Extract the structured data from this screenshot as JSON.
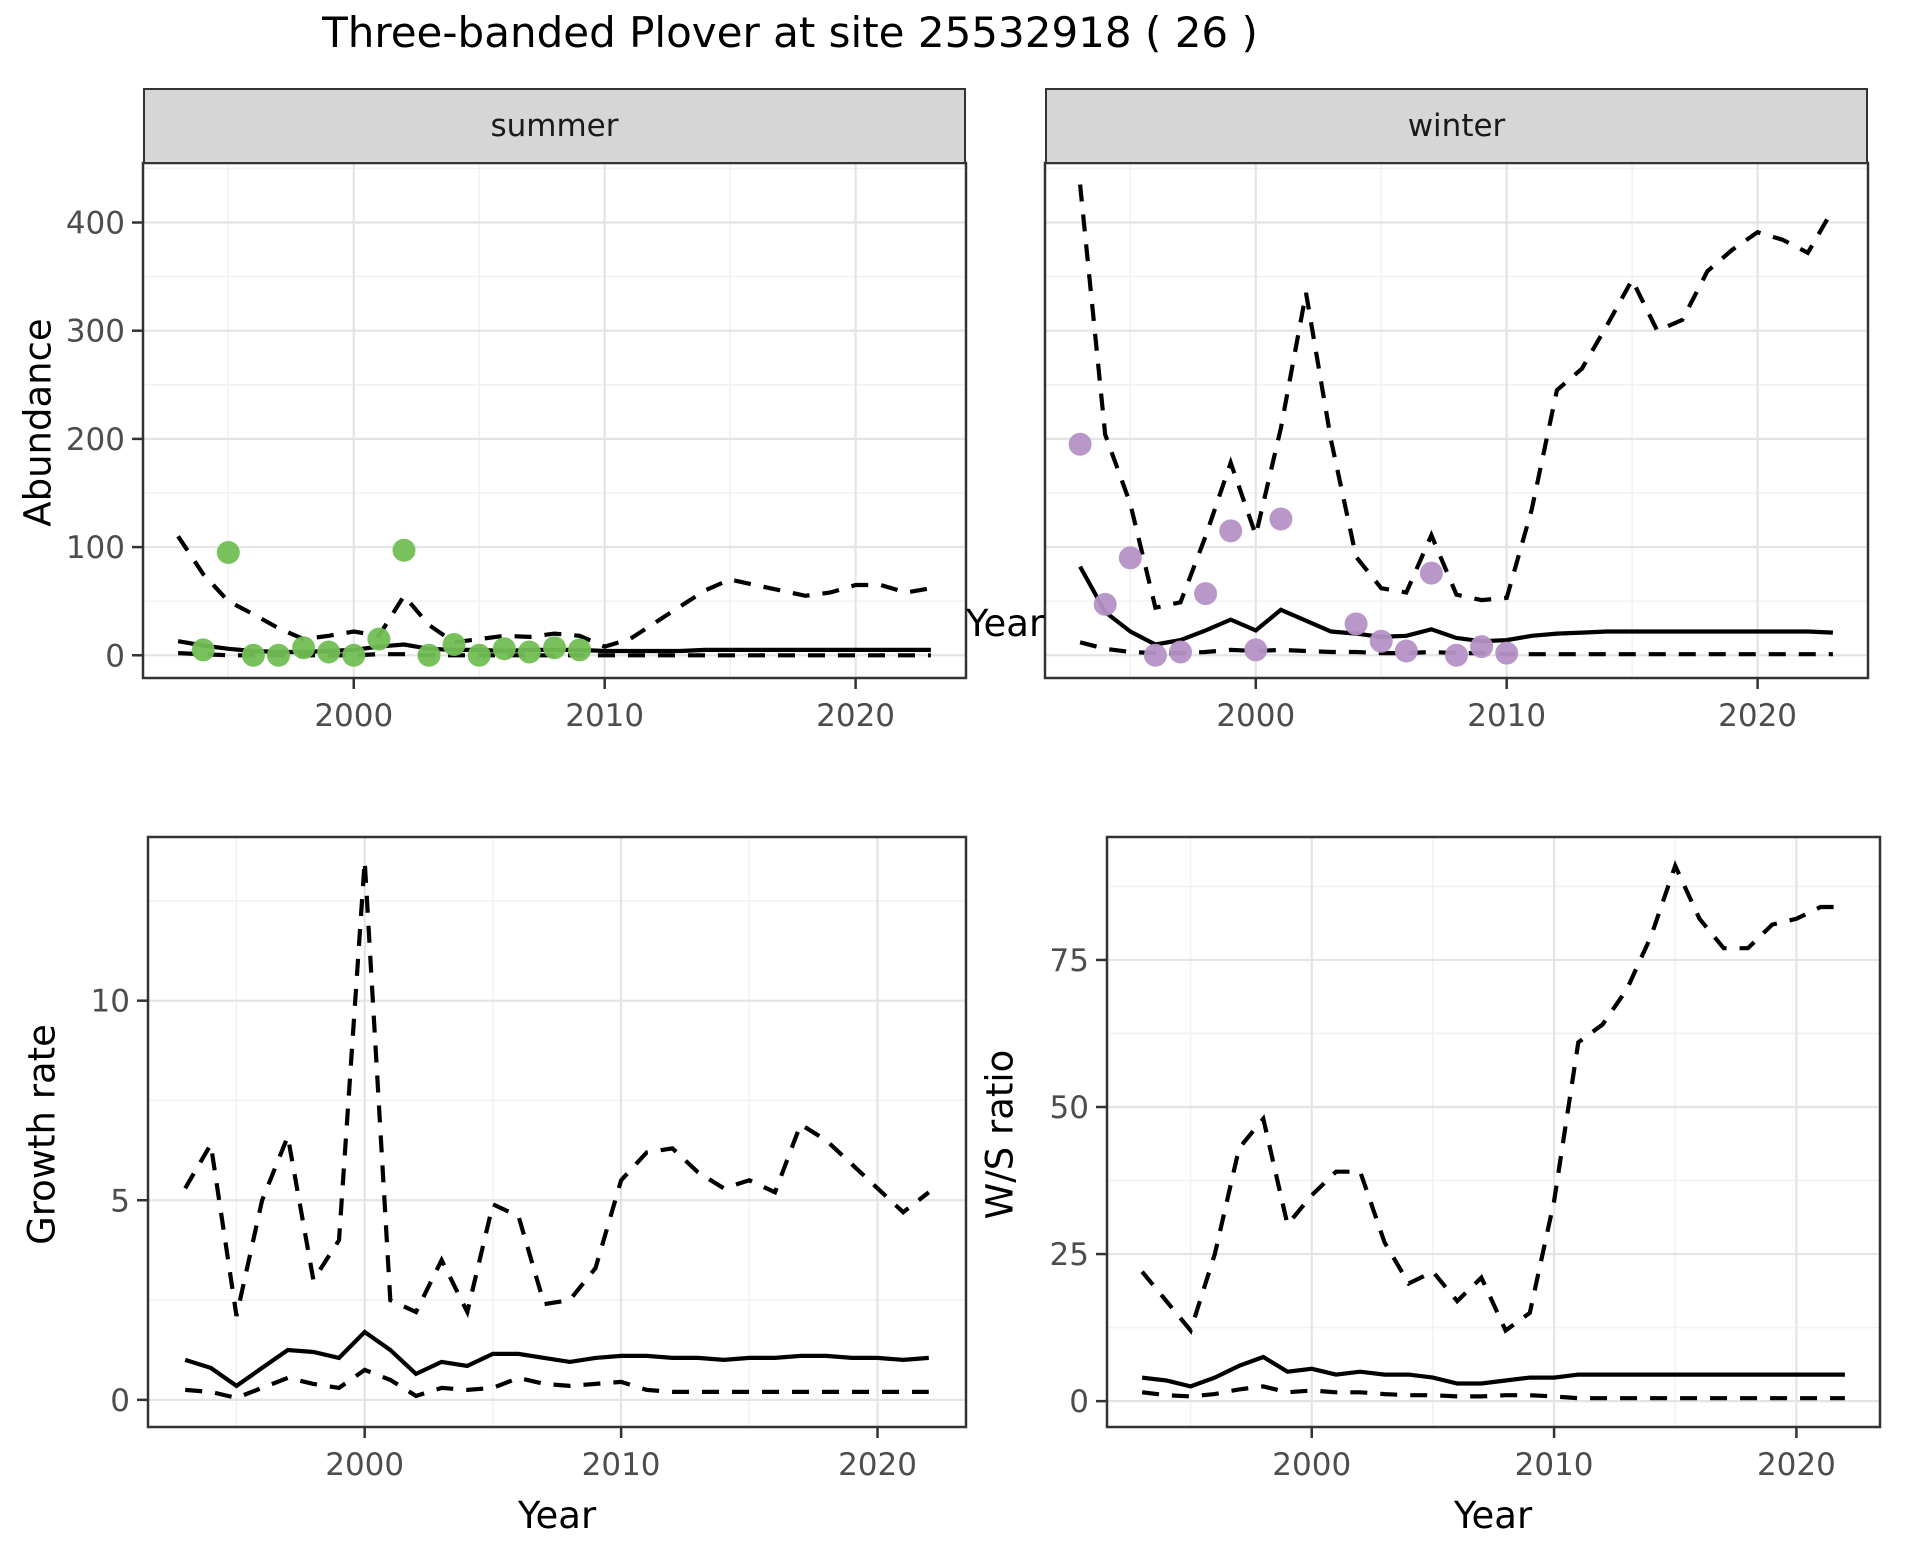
{
  "title": "Three-banded Plover at site 25532918 ( 26 )",
  "colors": {
    "summer_points": "#72BE54",
    "winter_points": "#B592C6",
    "line": "#000000",
    "strip_bg": "#d6d6d6",
    "grid_major": "#e4e4e4",
    "grid_minor": "#f2f2f2",
    "tick_label": "#4d4d4d",
    "panel_border": "#333333"
  },
  "chart_data": [
    {
      "type": "line",
      "facet": "summer",
      "xlabel": "Year",
      "ylabel": "Abundance",
      "xlim": [
        1991.6,
        2024.4
      ],
      "ylim": [
        -21,
        455
      ],
      "xticks": [
        2000,
        2010,
        2020
      ],
      "xtick_labels": [
        "2000",
        "2010",
        "2020"
      ],
      "xticks_minor": [
        1995,
        2005,
        2015
      ],
      "yticks": [
        0,
        100,
        200,
        300,
        400
      ],
      "ytick_labels": [
        "0",
        "100",
        "200",
        "300",
        "400"
      ],
      "yticks_minor": [
        50,
        150,
        250,
        350,
        450
      ],
      "grid": true,
      "legend": "none",
      "x": [
        1993,
        1994,
        1995,
        1996,
        1997,
        1998,
        1999,
        2000,
        2001,
        2002,
        2003,
        2004,
        2005,
        2006,
        2007,
        2008,
        2009,
        2010,
        2011,
        2012,
        2013,
        2014,
        2015,
        2016,
        2017,
        2018,
        2019,
        2020,
        2021,
        2022,
        2023
      ],
      "series": [
        {
          "name": "upper_credible_interval",
          "style": "dashed",
          "values": [
            110,
            75,
            50,
            38,
            25,
            15,
            18,
            22,
            18,
            55,
            28,
            12,
            15,
            18,
            17,
            20,
            18,
            8,
            15,
            30,
            45,
            60,
            70,
            65,
            60,
            55,
            58,
            65,
            65,
            58,
            62
          ]
        },
        {
          "name": "median",
          "style": "solid",
          "values": [
            13,
            9,
            6,
            4,
            3,
            3,
            4,
            5,
            8,
            10,
            6,
            5,
            5,
            4,
            5,
            5,
            5,
            4,
            4,
            4,
            4,
            5,
            5,
            5,
            5,
            5,
            5,
            5,
            5,
            5,
            5
          ]
        },
        {
          "name": "lower_credible_interval",
          "style": "dashed",
          "values": [
            2,
            1,
            0,
            0,
            0,
            0,
            0,
            0,
            1,
            1,
            0,
            0,
            0,
            0,
            0,
            0,
            0,
            0,
            0,
            0,
            0,
            0,
            0,
            0,
            0,
            0,
            0,
            0,
            0,
            0,
            0
          ]
        }
      ],
      "points": {
        "name": "observed_counts",
        "color": "#72BE54",
        "x": [
          1994,
          1995,
          1996,
          1997,
          1998,
          1999,
          2000,
          2001,
          2002,
          2003,
          2004,
          2005,
          2006,
          2007,
          2008,
          2009
        ],
        "y": [
          5,
          95,
          0,
          0,
          7,
          3,
          0,
          15,
          97,
          0,
          10,
          0,
          6,
          3,
          7,
          5
        ]
      }
    },
    {
      "type": "line",
      "facet": "winter",
      "xlabel": "Year",
      "ylabel": "Abundance",
      "xlim": [
        1991.6,
        2024.4
      ],
      "ylim": [
        -21,
        455
      ],
      "xticks": [
        2000,
        2010,
        2020
      ],
      "xtick_labels": [
        "2000",
        "2010",
        "2020"
      ],
      "xticks_minor": [
        1995,
        2005,
        2015
      ],
      "yticks": [
        0,
        100,
        200,
        300,
        400
      ],
      "ytick_labels": [
        "0",
        "100",
        "200",
        "300",
        "400"
      ],
      "yticks_minor": [
        50,
        150,
        250,
        350,
        450
      ],
      "grid": true,
      "legend": "none",
      "x": [
        1993,
        1994,
        1995,
        1996,
        1997,
        1998,
        1999,
        2000,
        2001,
        2002,
        2003,
        2004,
        2005,
        2006,
        2007,
        2008,
        2009,
        2010,
        2011,
        2012,
        2013,
        2014,
        2015,
        2016,
        2017,
        2018,
        2019,
        2020,
        2021,
        2022,
        2023
      ],
      "series": [
        {
          "name": "upper_credible_interval",
          "style": "dashed",
          "values": [
            435,
            204,
            140,
            44,
            49,
            110,
            178,
            111,
            210,
            335,
            199,
            91,
            62,
            58,
            111,
            56,
            51,
            53,
            135,
            245,
            265,
            305,
            347,
            300,
            310,
            355,
            375,
            391,
            384,
            372,
            412
          ]
        },
        {
          "name": "median",
          "style": "solid",
          "values": [
            82,
            40,
            22,
            10,
            14,
            23,
            33,
            23,
            42,
            32,
            22,
            20,
            17,
            18,
            24,
            16,
            13,
            14,
            18,
            20,
            21,
            22,
            22,
            22,
            22,
            22,
            22,
            22,
            22,
            22,
            21
          ]
        },
        {
          "name": "lower_credible_interval",
          "style": "dashed",
          "values": [
            12,
            6,
            3,
            2,
            2,
            3,
            5,
            4,
            5,
            4,
            3,
            3,
            2,
            2,
            3,
            2,
            2,
            1,
            1,
            1,
            1,
            1,
            1,
            1,
            1,
            1,
            1,
            1,
            1,
            1,
            1
          ]
        }
      ],
      "points": {
        "name": "observed_counts",
        "color": "#B592C6",
        "x": [
          1993,
          1994,
          1995,
          1996,
          1997,
          1998,
          1999,
          2000,
          2001,
          2004,
          2005,
          2006,
          2007,
          2008,
          2009,
          2010
        ],
        "y": [
          195,
          47,
          90,
          0,
          3,
          57,
          115,
          5,
          126,
          29,
          13,
          4,
          76,
          0,
          8,
          2
        ]
      }
    },
    {
      "type": "line",
      "facet": null,
      "xlabel": "Year",
      "ylabel": "Growth rate",
      "xlim": [
        1991.55,
        2023.45
      ],
      "ylim": [
        -0.68,
        14.1
      ],
      "xticks": [
        2000,
        2010,
        2020
      ],
      "xtick_labels": [
        "2000",
        "2010",
        "2020"
      ],
      "xticks_minor": [
        1995,
        2005,
        2015
      ],
      "yticks": [
        0,
        5,
        10
      ],
      "ytick_labels": [
        "0",
        "5",
        "10"
      ],
      "yticks_minor": [
        2.5,
        7.5,
        12.5
      ],
      "grid": true,
      "legend": "none",
      "x": [
        1993,
        1994,
        1995,
        1996,
        1997,
        1998,
        1999,
        2000,
        2001,
        2002,
        2003,
        2004,
        2005,
        2006,
        2007,
        2008,
        2009,
        2010,
        2011,
        2012,
        2013,
        2014,
        2015,
        2016,
        2017,
        2018,
        2019,
        2020,
        2021,
        2022
      ],
      "series": [
        {
          "name": "upper_credible_interval",
          "style": "dashed",
          "values": [
            5.3,
            6.4,
            2.1,
            5.0,
            6.6,
            3.0,
            4.0,
            13.5,
            2.5,
            2.2,
            3.5,
            2.2,
            4.9,
            4.6,
            2.4,
            2.5,
            3.3,
            5.5,
            6.2,
            6.3,
            5.7,
            5.3,
            5.5,
            5.2,
            6.9,
            6.5,
            5.9,
            5.3,
            4.7,
            5.2
          ]
        },
        {
          "name": "median",
          "style": "solid",
          "values": [
            1.0,
            0.8,
            0.35,
            0.8,
            1.25,
            1.2,
            1.05,
            1.7,
            1.25,
            0.65,
            0.95,
            0.85,
            1.15,
            1.15,
            1.05,
            0.95,
            1.05,
            1.1,
            1.1,
            1.05,
            1.05,
            1.0,
            1.05,
            1.05,
            1.1,
            1.1,
            1.05,
            1.05,
            1.0,
            1.05
          ]
        },
        {
          "name": "lower_credible_interval",
          "style": "dashed",
          "values": [
            0.25,
            0.2,
            0.05,
            0.3,
            0.55,
            0.4,
            0.3,
            0.75,
            0.5,
            0.1,
            0.3,
            0.25,
            0.3,
            0.55,
            0.4,
            0.35,
            0.4,
            0.45,
            0.25,
            0.2,
            0.2,
            0.2,
            0.2,
            0.2,
            0.2,
            0.2,
            0.2,
            0.2,
            0.2,
            0.2
          ]
        }
      ],
      "points": null
    },
    {
      "type": "line",
      "facet": null,
      "xlabel": "Year",
      "ylabel": "W/S ratio",
      "xlim": [
        1991.55,
        2023.45
      ],
      "ylim": [
        -4.4,
        95.9
      ],
      "xticks": [
        2000,
        2010,
        2020
      ],
      "xtick_labels": [
        "2000",
        "2010",
        "2020"
      ],
      "xticks_minor": [
        1995,
        2005,
        2015
      ],
      "yticks": [
        0,
        25,
        50,
        75
      ],
      "ytick_labels": [
        "0",
        "25",
        "50",
        "75"
      ],
      "yticks_minor": [
        12.5,
        37.5,
        62.5,
        87.5
      ],
      "grid": true,
      "legend": "none",
      "x": [
        1993,
        1994,
        1995,
        1996,
        1997,
        1998,
        1999,
        2000,
        2001,
        2002,
        2003,
        2004,
        2005,
        2006,
        2007,
        2008,
        2009,
        2010,
        2011,
        2012,
        2013,
        2014,
        2015,
        2016,
        2017,
        2018,
        2019,
        2020,
        2021,
        2022
      ],
      "series": [
        {
          "name": "upper_credible_interval",
          "style": "dashed",
          "values": [
            22,
            17,
            12,
            25,
            43,
            48,
            30,
            35,
            39,
            39,
            27,
            20,
            22,
            17,
            21,
            12,
            15,
            34,
            61,
            64,
            70,
            79,
            91,
            82,
            77,
            77,
            81,
            82,
            84,
            84
          ]
        },
        {
          "name": "median",
          "style": "solid",
          "values": [
            4,
            3.5,
            2.5,
            4,
            6,
            7.5,
            5,
            5.5,
            4.5,
            5,
            4.5,
            4.5,
            4,
            3,
            3,
            3.5,
            4,
            4,
            4.5,
            4.5,
            4.5,
            4.5,
            4.5,
            4.5,
            4.5,
            4.5,
            4.5,
            4.5,
            4.5,
            4.5
          ]
        },
        {
          "name": "lower_credible_interval",
          "style": "dashed",
          "values": [
            1.5,
            1,
            0.8,
            1.2,
            2,
            2.5,
            1.5,
            1.8,
            1.5,
            1.5,
            1.2,
            1,
            1,
            0.8,
            0.8,
            1,
            1,
            0.8,
            0.5,
            0.5,
            0.5,
            0.5,
            0.5,
            0.5,
            0.5,
            0.5,
            0.5,
            0.5,
            0.5,
            0.5
          ]
        }
      ],
      "points": null
    }
  ]
}
